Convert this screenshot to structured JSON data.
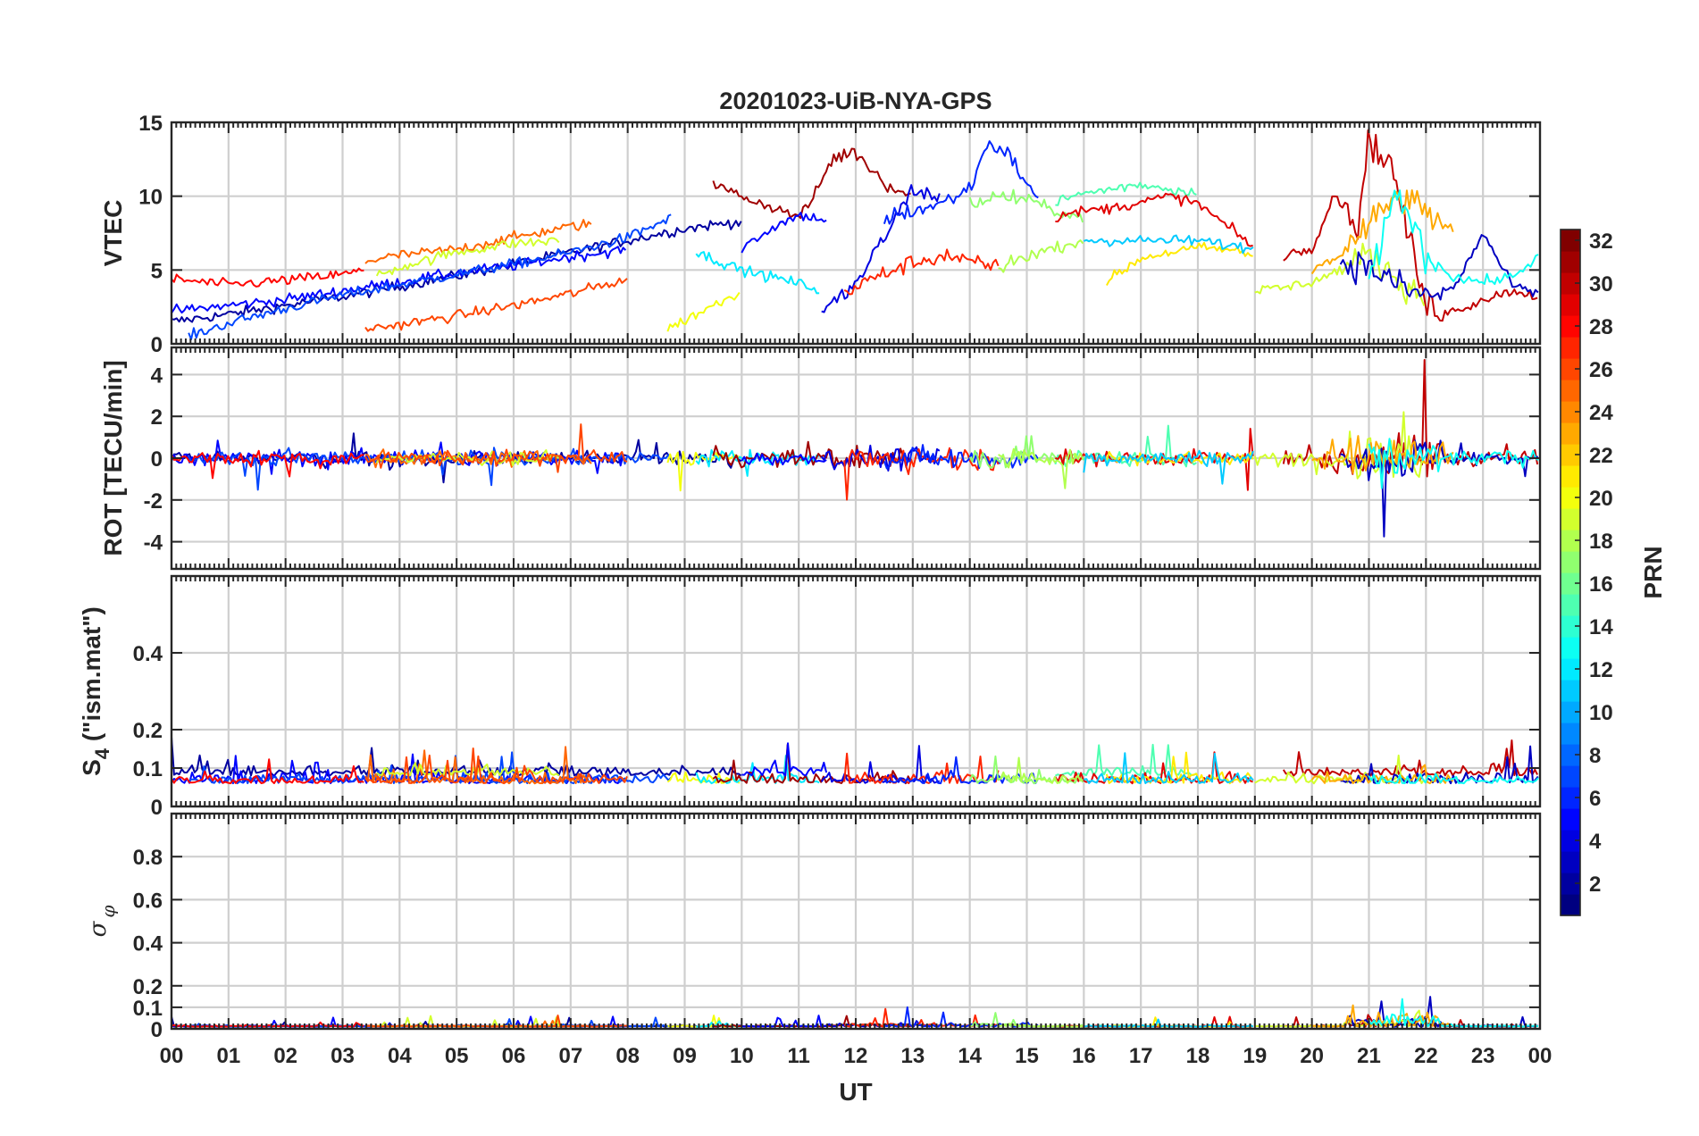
{
  "chart_data": {
    "type": "line",
    "title": "20201023-UiB-NYA-GPS",
    "xlabel": "UT",
    "x_ticks": [
      "00",
      "01",
      "02",
      "03",
      "04",
      "05",
      "06",
      "07",
      "08",
      "09",
      "10",
      "11",
      "12",
      "13",
      "14",
      "15",
      "16",
      "17",
      "18",
      "19",
      "20",
      "21",
      "22",
      "23",
      "00"
    ],
    "xlim_hours": [
      0,
      24
    ],
    "grid": true,
    "panels": [
      {
        "name": "vtec",
        "ylabel": "VTEC",
        "ylim": [
          0,
          15
        ],
        "yticks": [
          0,
          5,
          10,
          15
        ],
        "tick_labels": [
          "0",
          "5",
          "10",
          "15"
        ]
      },
      {
        "name": "rot",
        "ylabel": "ROT [TECU/min]",
        "ylim": [
          -5.3,
          5.3
        ],
        "yticks": [
          -4,
          -2,
          0,
          2,
          4
        ],
        "tick_labels": [
          "-4",
          "-2",
          "0",
          "2",
          "4"
        ]
      },
      {
        "name": "s4",
        "ylabel": "S4 (\"ism.mat\")",
        "ylabel_main": "S",
        "ylabel_sub": "4",
        "ylabel_rest": " (\"ism.mat\")",
        "ylim": [
          0,
          0.6
        ],
        "yticks": [
          0,
          0.1,
          0.2,
          0.4
        ],
        "tick_labels": [
          "0",
          "0.1",
          "0.2",
          "0.4"
        ]
      },
      {
        "name": "sigma_phi",
        "ylabel": "σ_φ",
        "ylabel_main": "σ",
        "ylabel_sub": "φ",
        "ylim": [
          0,
          1
        ],
        "yticks": [
          0,
          0.1,
          0.2,
          0.4,
          0.6,
          0.8
        ],
        "tick_labels": [
          "0",
          "0.1",
          "0.2",
          "0.4",
          "0.6",
          "0.8"
        ]
      }
    ],
    "colorbar": {
      "label": "PRN",
      "range": [
        1,
        32
      ],
      "ticks": [
        2,
        4,
        6,
        8,
        10,
        12,
        14,
        16,
        18,
        20,
        22,
        24,
        26,
        28,
        30,
        32
      ],
      "tick_labels": [
        "2",
        "4",
        "6",
        "8",
        "10",
        "12",
        "14",
        "16",
        "18",
        "20",
        "22",
        "24",
        "26",
        "28",
        "30",
        "32"
      ],
      "colormap": "jet"
    },
    "series": [
      {
        "prn": 2,
        "vtec_x": [
          0,
          1,
          2,
          3,
          4,
          5,
          6,
          7,
          8,
          9,
          10
        ],
        "vtec_y": [
          1.5,
          2.0,
          2.6,
          3.2,
          3.9,
          4.6,
          5.4,
          6.2,
          7.0,
          7.8,
          8.3
        ]
      },
      {
        "prn": 5,
        "vtec_x": [
          0,
          1,
          2,
          3,
          4,
          5,
          6,
          7,
          8
        ],
        "vtec_y": [
          2.2,
          2.6,
          3.0,
          3.6,
          4.2,
          4.8,
          5.3,
          5.9,
          6.4
        ]
      },
      {
        "prn": 7,
        "vtec_x": [
          0.3,
          1,
          2,
          3,
          4,
          5,
          6,
          7,
          8,
          8.8
        ],
        "vtec_y": [
          0.5,
          1.4,
          2.4,
          3.3,
          4.0,
          4.7,
          5.4,
          6.2,
          7.2,
          8.6
        ]
      },
      {
        "prn": 28,
        "vtec_x": [
          0,
          1,
          2,
          3,
          3.4
        ],
        "vtec_y": [
          4.4,
          4.0,
          4.3,
          4.7,
          5.0
        ]
      },
      {
        "prn": 25,
        "vtec_x": [
          3.4,
          4,
          5,
          6,
          6.8,
          7.4
        ],
        "vtec_y": [
          5.6,
          6.0,
          6.4,
          7.2,
          7.8,
          8.2
        ]
      },
      {
        "prn": 19,
        "vtec_x": [
          3.6,
          4,
          5,
          6,
          6.8
        ],
        "vtec_y": [
          4.6,
          5.2,
          6.2,
          6.8,
          7.0
        ]
      },
      {
        "prn": 26,
        "vtec_x": [
          3.4,
          4,
          5,
          6,
          7,
          8
        ],
        "vtec_y": [
          1.0,
          1.3,
          1.9,
          2.6,
          3.4,
          4.4
        ]
      },
      {
        "prn": 20,
        "vtec_x": [
          8.7,
          9,
          9.5,
          10
        ],
        "vtec_y": [
          1.0,
          1.6,
          2.6,
          3.6
        ]
      },
      {
        "prn": 12,
        "vtec_x": [
          9.2,
          10,
          11,
          11.4
        ],
        "vtec_y": [
          6.2,
          5.0,
          4.1,
          3.6
        ]
      },
      {
        "prn": 31,
        "vtec_x": [
          9.5,
          10,
          11,
          11.2,
          11.6,
          12,
          12.5,
          13
        ],
        "vtec_y": [
          10.8,
          10.0,
          8.6,
          9.5,
          12.6,
          13.0,
          11.0,
          9.8
        ]
      },
      {
        "prn": 5,
        "vtec_x": [
          10,
          10.6,
          11,
          11.5
        ],
        "vtec_y": [
          6.5,
          8.0,
          8.7,
          8.4
        ]
      },
      {
        "prn": 4,
        "vtec_x": [
          11.4,
          12,
          12.5,
          13,
          13.5
        ],
        "vtec_y": [
          2.1,
          4.0,
          7.2,
          10.5,
          9.8
        ]
      },
      {
        "prn": 27,
        "vtec_x": [
          11.8,
          12.4,
          13,
          13.6,
          14,
          14.5
        ],
        "vtec_y": [
          3.5,
          4.6,
          5.5,
          6.0,
          5.5,
          5.2
        ]
      },
      {
        "prn": 6,
        "vtec_x": [
          12.5,
          13,
          13.5,
          14,
          14.3,
          14.6,
          14.9,
          15.2
        ],
        "vtec_y": [
          8.5,
          9.0,
          9.5,
          10.5,
          13.5,
          13.2,
          11.5,
          9.7
        ]
      },
      {
        "prn": 17,
        "vtec_x": [
          14,
          14.5,
          15,
          15.5,
          16
        ],
        "vtec_y": [
          9.5,
          10.0,
          9.8,
          9.0,
          8.5
        ]
      },
      {
        "prn": 15,
        "vtec_x": [
          15.5,
          16,
          16.5,
          17,
          17.5,
          18
        ],
        "vtec_y": [
          9.6,
          10.2,
          10.5,
          10.8,
          10.5,
          10.2
        ]
      },
      {
        "prn": 29,
        "vtec_x": [
          15.5,
          16,
          16.5,
          17,
          17.5,
          18,
          18.5,
          19
        ],
        "vtec_y": [
          8.6,
          9.0,
          9.2,
          9.6,
          10.0,
          9.5,
          8.0,
          6.5
        ]
      },
      {
        "prn": 18,
        "vtec_x": [
          14.5,
          15,
          15.5,
          16
        ],
        "vtec_y": [
          5.0,
          6.0,
          6.5,
          7.0
        ]
      },
      {
        "prn": 21,
        "vtec_x": [
          16.4,
          17,
          17.5,
          18,
          18.5,
          19
        ],
        "vtec_y": [
          4.2,
          5.8,
          6.2,
          6.5,
          6.4,
          6.0
        ]
      },
      {
        "prn": 11,
        "vtec_x": [
          16,
          16.5,
          17,
          18,
          19
        ],
        "vtec_y": [
          7.0,
          7.0,
          7.0,
          7.0,
          6.4
        ]
      },
      {
        "prn": 30,
        "vtec_x": [
          19.5,
          20,
          20.4,
          20.8,
          21,
          21.4,
          22,
          22.5,
          23,
          23.5,
          24
        ],
        "vtec_y": [
          6.0,
          6.5,
          10.2,
          8.0,
          13.8,
          12.0,
          2.5,
          2.2,
          3.0,
          3.6,
          3.2
        ]
      },
      {
        "prn": 19,
        "vtec_x": [
          19,
          19.5,
          20,
          20.5,
          21,
          21.5,
          22
        ],
        "vtec_y": [
          3.6,
          3.8,
          4.2,
          5.0,
          6.0,
          4.4,
          3.0
        ]
      },
      {
        "prn": 3,
        "vtec_x": [
          20.5,
          21,
          21.5,
          22,
          22.5,
          23,
          23.5,
          24
        ],
        "vtec_y": [
          5.5,
          5.2,
          4.0,
          3.2,
          3.8,
          7.5,
          4.0,
          3.2
        ]
      },
      {
        "prn": 23,
        "vtec_x": [
          20,
          20.5,
          21,
          21.5,
          22,
          22.5
        ],
        "vtec_y": [
          5.0,
          6.0,
          8.0,
          10.0,
          9.0,
          7.5
        ]
      },
      {
        "prn": 13,
        "vtec_x": [
          21,
          21.5,
          22,
          22.5,
          23,
          23.5,
          24
        ],
        "vtec_y": [
          4.0,
          10.5,
          6.0,
          4.5,
          4.2,
          4.5,
          6.0
        ]
      }
    ]
  }
}
